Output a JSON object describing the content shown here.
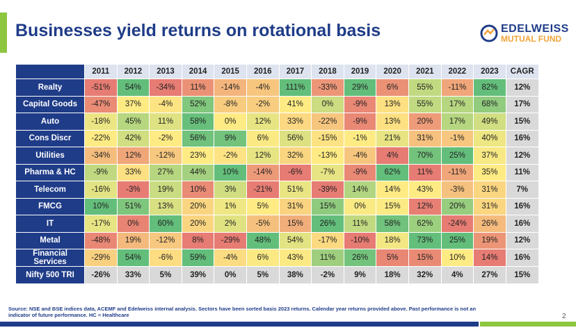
{
  "header": {
    "title": "Businesses yield returns on rotational basis",
    "logo": {
      "name": "EDELWEISS",
      "subtitle": "MUTUAL FUND"
    }
  },
  "table": {
    "columns": [
      "2011",
      "2012",
      "2013",
      "2014",
      "2015",
      "2016",
      "2017",
      "2018",
      "2019",
      "2020",
      "2021",
      "2022",
      "2023",
      "CAGR"
    ],
    "rows": [
      {
        "label": "Realty",
        "cells": [
          "-51%",
          "54%",
          "-34%",
          "11%",
          "-14%",
          "-4%",
          "111%",
          "-33%",
          "29%",
          "6%",
          "55%",
          "-11%",
          "82%",
          "12%"
        ]
      },
      {
        "label": "Capital Goods",
        "cells": [
          "-47%",
          "37%",
          "-4%",
          "52%",
          "-8%",
          "-2%",
          "41%",
          "0%",
          "-9%",
          "13%",
          "55%",
          "17%",
          "68%",
          "17%"
        ]
      },
      {
        "label": "Auto",
        "cells": [
          "-18%",
          "45%",
          "11%",
          "58%",
          "0%",
          "12%",
          "33%",
          "-22%",
          "-9%",
          "13%",
          "20%",
          "17%",
          "49%",
          "15%"
        ]
      },
      {
        "label": "Cons Discr",
        "cells": [
          "-22%",
          "42%",
          "-2%",
          "56%",
          "9%",
          "6%",
          "56%",
          "-15%",
          "-1%",
          "21%",
          "31%",
          "-1%",
          "40%",
          "16%"
        ]
      },
      {
        "label": "Utilities",
        "cells": [
          "-34%",
          "12%",
          "-12%",
          "23%",
          "-2%",
          "12%",
          "32%",
          "-13%",
          "-4%",
          "4%",
          "70%",
          "25%",
          "37%",
          "12%"
        ]
      },
      {
        "label": "Pharma & HC",
        "cells": [
          "-9%",
          "33%",
          "27%",
          "44%",
          "10%",
          "-14%",
          "-6%",
          "-7%",
          "-9%",
          "62%",
          "11%",
          "-11%",
          "35%",
          "11%"
        ]
      },
      {
        "label": "Telecom",
        "cells": [
          "-16%",
          "-3%",
          "19%",
          "10%",
          "3%",
          "-21%",
          "51%",
          "-39%",
          "14%",
          "14%",
          "43%",
          "-3%",
          "31%",
          "7%"
        ]
      },
      {
        "label": "FMCG",
        "cells": [
          "10%",
          "51%",
          "13%",
          "20%",
          "1%",
          "5%",
          "31%",
          "15%",
          "0%",
          "15%",
          "12%",
          "20%",
          "31%",
          "16%"
        ]
      },
      {
        "label": "IT",
        "cells": [
          "-17%",
          "0%",
          "60%",
          "20%",
          "2%",
          "-5%",
          "15%",
          "26%",
          "11%",
          "58%",
          "62%",
          "-24%",
          "26%",
          "16%"
        ]
      },
      {
        "label": "Metal",
        "cells": [
          "-48%",
          "19%",
          "-12%",
          "8%",
          "-29%",
          "48%",
          "54%",
          "-17%",
          "-10%",
          "18%",
          "73%",
          "25%",
          "19%",
          "12%"
        ]
      },
      {
        "label": "Financial Services",
        "cells": [
          "-29%",
          "54%",
          "-6%",
          "59%",
          "-4%",
          "6%",
          "43%",
          "11%",
          "26%",
          "5%",
          "15%",
          "10%",
          "14%",
          "16%"
        ]
      },
      {
        "label": "Nifty 500 TRI",
        "cells": [
          "-26%",
          "33%",
          "5%",
          "39%",
          "0%",
          "5%",
          "38%",
          "-2%",
          "9%",
          "18%",
          "32%",
          "4%",
          "27%",
          "15%"
        ]
      }
    ]
  },
  "footer": {
    "source": "Source: NSE and BSE indices data, ACEMF and Edelweiss internal analysis. Sectors have been sorted basis 2023 returns. Calendar year returns provided above. Past performance is not an indicator of future performance. HC = Healthcare",
    "page": "2"
  }
}
